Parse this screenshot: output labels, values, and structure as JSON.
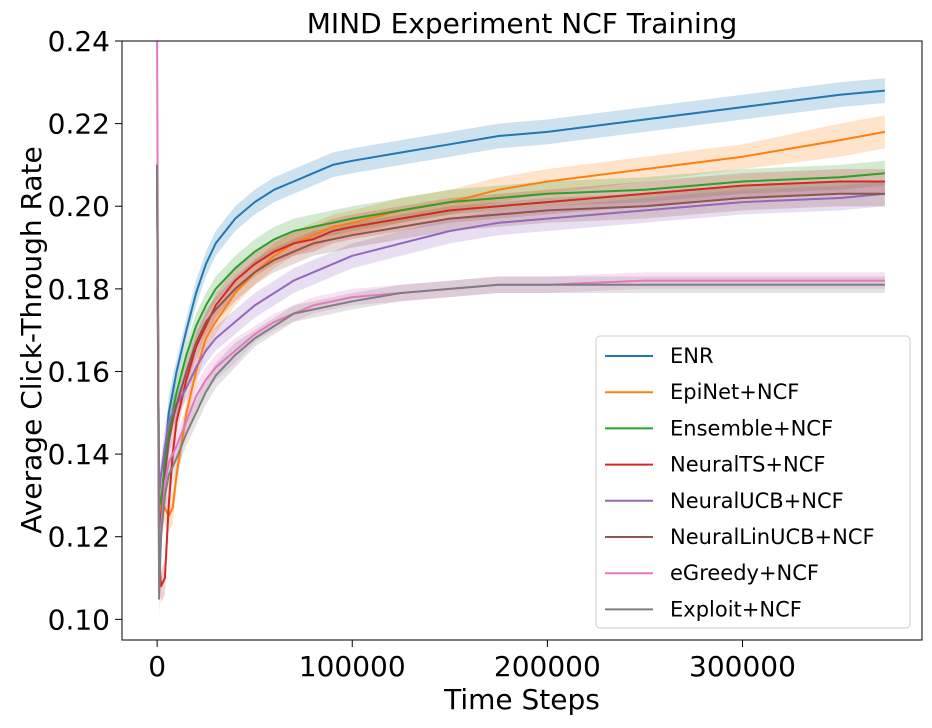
{
  "chart_data": {
    "type": "line",
    "title": "MIND Experiment NCF Training",
    "xlabel": "Time Steps",
    "ylabel": "Average Click-Through Rate",
    "xlim": [
      -18000,
      392000
    ],
    "ylim": [
      0.095,
      0.24
    ],
    "xticks": [
      0,
      100000,
      200000,
      300000
    ],
    "xtick_labels": [
      "0",
      "100000",
      "200000",
      "300000"
    ],
    "yticks": [
      0.1,
      0.12,
      0.14,
      0.16,
      0.18,
      0.2,
      0.22,
      0.24
    ],
    "ytick_labels": [
      "0.10",
      "0.12",
      "0.14",
      "0.16",
      "0.18",
      "0.20",
      "0.22",
      "0.24"
    ],
    "grid": false,
    "legend_position": "lower-right",
    "series": [
      {
        "name": "ENR",
        "color": "#1f77b4",
        "x": [
          0,
          1000,
          2000,
          4000,
          6000,
          8000,
          10000,
          15000,
          20000,
          25000,
          30000,
          40000,
          50000,
          60000,
          70000,
          80000,
          90000,
          100000,
          125000,
          150000,
          175000,
          200000,
          250000,
          300000,
          350000,
          373000
        ],
        "y": [
          0.21,
          0.13,
          0.125,
          0.14,
          0.15,
          0.155,
          0.16,
          0.17,
          0.179,
          0.186,
          0.191,
          0.197,
          0.201,
          0.204,
          0.206,
          0.208,
          0.21,
          0.211,
          0.213,
          0.215,
          0.217,
          0.218,
          0.221,
          0.224,
          0.227,
          0.228
        ],
        "band": [
          0.006,
          0.005,
          0.004,
          0.004,
          0.004,
          0.004,
          0.003,
          0.003,
          0.003,
          0.003,
          0.003,
          0.003,
          0.003,
          0.003,
          0.003,
          0.003,
          0.003,
          0.003,
          0.003,
          0.003,
          0.003,
          0.003,
          0.003,
          0.003,
          0.003,
          0.003
        ]
      },
      {
        "name": "EpiNet+NCF",
        "color": "#ff7f0e",
        "x": [
          0,
          1000,
          2000,
          4000,
          6000,
          8000,
          10000,
          15000,
          20000,
          25000,
          30000,
          40000,
          50000,
          60000,
          70000,
          80000,
          90000,
          100000,
          125000,
          150000,
          175000,
          200000,
          250000,
          300000,
          350000,
          373000
        ],
        "y": [
          0.21,
          0.125,
          0.13,
          0.127,
          0.125,
          0.127,
          0.135,
          0.15,
          0.16,
          0.168,
          0.172,
          0.179,
          0.184,
          0.188,
          0.191,
          0.193,
          0.195,
          0.196,
          0.199,
          0.201,
          0.204,
          0.206,
          0.209,
          0.212,
          0.216,
          0.218
        ],
        "band": [
          0.006,
          0.005,
          0.004,
          0.004,
          0.004,
          0.004,
          0.003,
          0.003,
          0.003,
          0.003,
          0.003,
          0.003,
          0.003,
          0.003,
          0.003,
          0.003,
          0.003,
          0.003,
          0.003,
          0.003,
          0.003,
          0.003,
          0.003,
          0.003,
          0.004,
          0.004
        ]
      },
      {
        "name": "Ensemble+NCF",
        "color": "#2ca02c",
        "x": [
          0,
          1000,
          2000,
          4000,
          6000,
          8000,
          10000,
          15000,
          20000,
          25000,
          30000,
          40000,
          50000,
          60000,
          70000,
          80000,
          90000,
          100000,
          125000,
          150000,
          175000,
          200000,
          250000,
          300000,
          350000,
          373000
        ],
        "y": [
          0.21,
          0.13,
          0.128,
          0.138,
          0.145,
          0.15,
          0.155,
          0.164,
          0.171,
          0.176,
          0.18,
          0.185,
          0.189,
          0.192,
          0.194,
          0.195,
          0.196,
          0.197,
          0.199,
          0.201,
          0.202,
          0.203,
          0.204,
          0.206,
          0.207,
          0.208
        ],
        "band": [
          0.006,
          0.005,
          0.004,
          0.004,
          0.004,
          0.004,
          0.003,
          0.003,
          0.003,
          0.003,
          0.003,
          0.003,
          0.003,
          0.003,
          0.003,
          0.003,
          0.003,
          0.003,
          0.003,
          0.003,
          0.003,
          0.003,
          0.003,
          0.003,
          0.003,
          0.003
        ]
      },
      {
        "name": "NeuralTS+NCF",
        "color": "#d62728",
        "x": [
          0,
          1000,
          2000,
          4000,
          6000,
          8000,
          10000,
          15000,
          20000,
          25000,
          30000,
          40000,
          50000,
          60000,
          70000,
          80000,
          90000,
          100000,
          125000,
          150000,
          175000,
          200000,
          250000,
          300000,
          350000,
          373000
        ],
        "y": [
          0.21,
          0.115,
          0.108,
          0.11,
          0.128,
          0.14,
          0.148,
          0.158,
          0.166,
          0.171,
          0.176,
          0.182,
          0.186,
          0.189,
          0.191,
          0.192,
          0.194,
          0.195,
          0.197,
          0.199,
          0.2,
          0.201,
          0.203,
          0.205,
          0.206,
          0.206
        ],
        "band": [
          0.006,
          0.005,
          0.004,
          0.004,
          0.004,
          0.004,
          0.003,
          0.003,
          0.003,
          0.003,
          0.003,
          0.003,
          0.003,
          0.003,
          0.003,
          0.003,
          0.003,
          0.003,
          0.003,
          0.003,
          0.003,
          0.003,
          0.003,
          0.003,
          0.003,
          0.003
        ]
      },
      {
        "name": "NeuralUCB+NCF",
        "color": "#9467bd",
        "x": [
          0,
          1000,
          2000,
          4000,
          6000,
          8000,
          10000,
          15000,
          20000,
          25000,
          30000,
          40000,
          50000,
          60000,
          70000,
          80000,
          90000,
          100000,
          125000,
          150000,
          175000,
          200000,
          250000,
          300000,
          350000,
          373000
        ],
        "y": [
          0.21,
          0.13,
          0.135,
          0.142,
          0.148,
          0.15,
          0.152,
          0.156,
          0.161,
          0.165,
          0.168,
          0.172,
          0.176,
          0.179,
          0.182,
          0.184,
          0.186,
          0.188,
          0.191,
          0.194,
          0.196,
          0.197,
          0.199,
          0.201,
          0.202,
          0.203
        ],
        "band": [
          0.006,
          0.005,
          0.004,
          0.004,
          0.004,
          0.004,
          0.003,
          0.003,
          0.003,
          0.003,
          0.003,
          0.003,
          0.003,
          0.003,
          0.003,
          0.003,
          0.003,
          0.003,
          0.003,
          0.003,
          0.003,
          0.003,
          0.003,
          0.003,
          0.003,
          0.003
        ]
      },
      {
        "name": "NeuralLinUCB+NCF",
        "color": "#8c564b",
        "x": [
          0,
          1000,
          2000,
          4000,
          6000,
          8000,
          10000,
          15000,
          20000,
          25000,
          30000,
          40000,
          50000,
          60000,
          70000,
          80000,
          90000,
          100000,
          125000,
          150000,
          175000,
          200000,
          250000,
          300000,
          350000,
          373000
        ],
        "y": [
          0.21,
          0.12,
          0.125,
          0.135,
          0.143,
          0.148,
          0.152,
          0.16,
          0.167,
          0.172,
          0.175,
          0.18,
          0.184,
          0.187,
          0.189,
          0.191,
          0.192,
          0.193,
          0.195,
          0.197,
          0.198,
          0.199,
          0.2,
          0.202,
          0.203,
          0.203
        ],
        "band": [
          0.006,
          0.005,
          0.004,
          0.004,
          0.004,
          0.004,
          0.003,
          0.003,
          0.003,
          0.003,
          0.003,
          0.003,
          0.003,
          0.003,
          0.003,
          0.003,
          0.003,
          0.003,
          0.003,
          0.003,
          0.003,
          0.003,
          0.003,
          0.003,
          0.003,
          0.003
        ]
      },
      {
        "name": "eGreedy+NCF",
        "color": "#e377c2",
        "x": [
          0,
          1000,
          2000,
          4000,
          6000,
          8000,
          10000,
          15000,
          20000,
          25000,
          30000,
          40000,
          50000,
          60000,
          70000,
          80000,
          90000,
          100000,
          125000,
          150000,
          175000,
          200000,
          250000,
          300000,
          350000,
          373000
        ],
        "y": [
          0.24,
          0.11,
          0.122,
          0.133,
          0.138,
          0.14,
          0.142,
          0.148,
          0.154,
          0.158,
          0.161,
          0.165,
          0.169,
          0.172,
          0.174,
          0.176,
          0.177,
          0.178,
          0.179,
          0.18,
          0.181,
          0.181,
          0.182,
          0.182,
          0.182,
          0.182
        ],
        "band": [
          0.006,
          0.005,
          0.004,
          0.004,
          0.004,
          0.004,
          0.003,
          0.003,
          0.003,
          0.003,
          0.003,
          0.003,
          0.002,
          0.002,
          0.002,
          0.002,
          0.002,
          0.002,
          0.002,
          0.002,
          0.002,
          0.002,
          0.002,
          0.002,
          0.002,
          0.002
        ]
      },
      {
        "name": "Exploit+NCF",
        "color": "#7f7f7f",
        "x": [
          0,
          1000,
          2000,
          4000,
          6000,
          8000,
          10000,
          15000,
          20000,
          25000,
          30000,
          40000,
          50000,
          60000,
          70000,
          80000,
          90000,
          100000,
          125000,
          150000,
          175000,
          200000,
          250000,
          300000,
          350000,
          373000
        ],
        "y": [
          0.21,
          0.105,
          0.12,
          0.13,
          0.135,
          0.137,
          0.139,
          0.145,
          0.15,
          0.155,
          0.159,
          0.164,
          0.168,
          0.171,
          0.174,
          0.175,
          0.176,
          0.177,
          0.179,
          0.18,
          0.181,
          0.181,
          0.181,
          0.181,
          0.181,
          0.181
        ],
        "band": [
          0.006,
          0.005,
          0.004,
          0.004,
          0.004,
          0.004,
          0.003,
          0.003,
          0.003,
          0.003,
          0.003,
          0.003,
          0.002,
          0.002,
          0.002,
          0.002,
          0.002,
          0.002,
          0.002,
          0.002,
          0.002,
          0.002,
          0.002,
          0.002,
          0.002,
          0.002
        ]
      }
    ]
  }
}
